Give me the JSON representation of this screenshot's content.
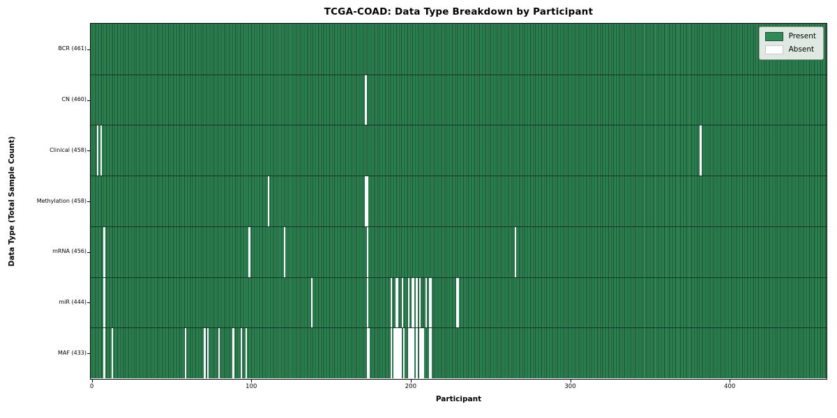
{
  "figure": {
    "title": "TCGA-COAD: Data Type Breakdown by Participant",
    "xlabel": "Participant",
    "ylabel": "Data Type (Total Sample Count)"
  },
  "legend": {
    "items": [
      {
        "label": "Present",
        "color": "#2e8b57",
        "edge": "#1b4d32"
      },
      {
        "label": "Absent",
        "color": "#ffffff",
        "edge": "#c8c8c8"
      }
    ]
  },
  "colors": {
    "present_fill": "#2f8b58",
    "present_edge": "#1c4a30",
    "absent_fill": "#ffffff",
    "row_divider": "rgba(5,25,14,0.7)",
    "plot_border": "#000000",
    "legend_bg": "#e0e9e1",
    "legend_border": "#9aa59b"
  },
  "chart_data": {
    "type": "heatmap",
    "title": "TCGA-COAD: Data Type Breakdown by Participant",
    "xlabel": "Participant",
    "ylabel": "Data Type (Total Sample Count)",
    "n_participants": 461,
    "x_ticks": [
      0,
      100,
      200,
      300,
      400
    ],
    "legend_entries": [
      "Present",
      "Absent"
    ],
    "legend_position": "upper right",
    "categories": [
      "BCR (461)",
      "CN (460)",
      "Clinical (458)",
      "Methylation (458)",
      "mRNA (456)",
      "miR (444)",
      "MAF (433)"
    ],
    "rows": [
      {
        "label": "BCR (461)",
        "data_type": "BCR",
        "present_count": 461,
        "absent_count": 0,
        "absent_indices": []
      },
      {
        "label": "CN (460)",
        "data_type": "CN",
        "present_count": 460,
        "absent_count": 1,
        "absent_indices": [
          172
        ]
      },
      {
        "label": "Clinical (458)",
        "data_type": "Clinical",
        "present_count": 458,
        "absent_count": 3,
        "absent_indices": [
          4,
          6,
          382
        ]
      },
      {
        "label": "Methylation (458)",
        "data_type": "Methylation",
        "present_count": 458,
        "absent_count": 3,
        "absent_indices": [
          111,
          172,
          173
        ]
      },
      {
        "label": "mRNA (456)",
        "data_type": "mRNA",
        "present_count": 456,
        "absent_count": 5,
        "absent_indices": [
          8,
          99,
          121,
          173,
          266
        ]
      },
      {
        "label": "miR (444)",
        "data_type": "miR",
        "present_count": 444,
        "absent_count": 17,
        "absent_indices": [
          8,
          138,
          173,
          188,
          191,
          192,
          195,
          199,
          201,
          202,
          204,
          206,
          210,
          212,
          213,
          229,
          230
        ]
      },
      {
        "label": "MAF (433)",
        "data_type": "MAF",
        "present_count": 433,
        "absent_count": 28,
        "absent_indices": [
          8,
          13,
          59,
          71,
          73,
          80,
          89,
          94,
          97,
          173,
          174,
          188,
          190,
          191,
          192,
          193,
          194,
          196,
          199,
          200,
          201,
          202,
          204,
          206,
          207,
          208,
          212,
          213
        ]
      }
    ]
  }
}
